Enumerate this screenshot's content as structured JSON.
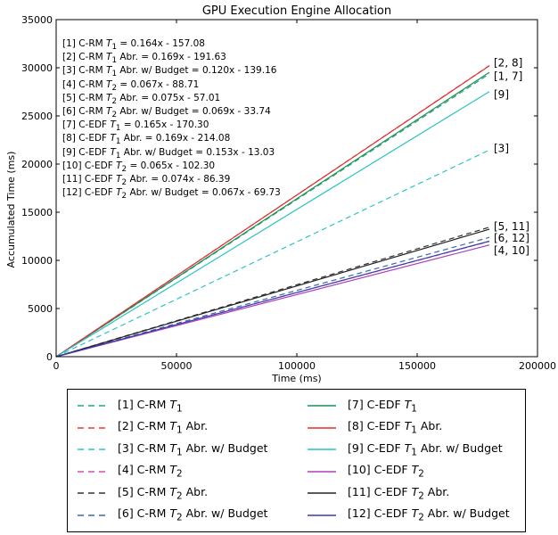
{
  "chart_data": {
    "type": "line",
    "title": "GPU Execution Engine Allocation",
    "xlabel": "Time (ms)",
    "ylabel": "Accumulated Time (ms)",
    "xlim": [
      0,
      200000
    ],
    "ylim": [
      0,
      35000
    ],
    "xticks": [
      "0",
      "50000",
      "100000",
      "150000",
      "200000"
    ],
    "yticks": [
      "0",
      "5000",
      "10000",
      "15000",
      "20000",
      "25000",
      "30000",
      "35000"
    ],
    "grid": false,
    "x_end": 180000,
    "series": [
      {
        "name": "[1] C-RM T1",
        "label_html": "[1] C-RM <i>T</i><sub>1</sub>",
        "slope": 0.164,
        "intercept": -157.08,
        "color": "#22a96e",
        "dash": true
      },
      {
        "name": "[2] C-RM T1 Abr.",
        "label_html": "[2] C-RM <i>T</i><sub>1</sub> Abr.",
        "slope": 0.169,
        "intercept": -191.63,
        "color": "#ee3a3a",
        "dash": true
      },
      {
        "name": "[3] C-RM T1 Abr. w/ Budget",
        "label_html": "[3] C-RM <i>T</i><sub>1</sub> Abr. w/ Budget",
        "slope": 0.12,
        "intercept": -139.16,
        "color": "#2ec4c4",
        "dash": true
      },
      {
        "name": "[4] C-RM T2",
        "label_html": "[4] C-RM <i>T</i><sub>2</sub>",
        "slope": 0.067,
        "intercept": -88.71,
        "color": "#d64fb0",
        "dash": true
      },
      {
        "name": "[5] C-RM T2 Abr.",
        "label_html": "[5] C-RM <i>T</i><sub>2</sub> Abr.",
        "slope": 0.075,
        "intercept": -57.01,
        "color": "#333333",
        "dash": true
      },
      {
        "name": "[6] C-RM T2 Abr. w/ Budget",
        "label_html": "[6] C-RM <i>T</i><sub>2</sub> Abr. w/ Budget",
        "slope": 0.069,
        "intercept": -33.74,
        "color": "#3a6aa6",
        "dash": true
      },
      {
        "name": "[7] C-EDF T1",
        "label_html": "[7] C-EDF <i>T</i><sub>1</sub>",
        "slope": 0.165,
        "intercept": -170.3,
        "color": "#1a8f5a",
        "dash": false
      },
      {
        "name": "[8] C-EDF T1 Abr.",
        "label_html": "[8] C-EDF <i>T</i><sub>1</sub> Abr.",
        "slope": 0.169,
        "intercept": -214.08,
        "color": "#e03030",
        "dash": false
      },
      {
        "name": "[9] C-EDF T1 Abr. w/ Budget",
        "label_html": "[9] C-EDF <i>T</i><sub>1</sub> Abr. w/ Budget",
        "slope": 0.153,
        "intercept": -13.03,
        "color": "#29c2c2",
        "dash": false
      },
      {
        "name": "[10] C-EDF T2",
        "label_html": "[10] C-EDF <i>T</i><sub>2</sub>",
        "slope": 0.065,
        "intercept": -102.3,
        "color": "#b040b8",
        "dash": false
      },
      {
        "name": "[11] C-EDF T2 Abr.",
        "label_html": "[11] C-EDF <i>T</i><sub>2</sub> Abr.",
        "slope": 0.074,
        "intercept": -86.39,
        "color": "#222222",
        "dash": false
      },
      {
        "name": "[12] C-EDF T2 Abr. w/ Budget",
        "label_html": "[12] C-EDF <i>T</i><sub>2</sub> Abr. w/ Budget",
        "slope": 0.067,
        "intercept": -69.73,
        "color": "#3a3ab0",
        "dash": false
      }
    ],
    "annotations": [
      {
        "text": "[1] C-RM T1 = 0.164x - 157.08",
        "html": "[1] C-RM <i>T</i><sub>1</sub> = 0.164x - 157.08"
      },
      {
        "text": "[2] C-RM T1 Abr. = 0.169x - 191.63",
        "html": "[2] C-RM <i>T</i><sub>1</sub> Abr. = 0.169x - 191.63"
      },
      {
        "text": "[3] C-RM T1 Abr. w/ Budget = 0.120x - 139.16",
        "html": "[3] C-RM <i>T</i><sub>1</sub> Abr. w/ Budget = 0.120x - 139.16"
      },
      {
        "text": "[4] C-RM T2 = 0.067x - 88.71",
        "html": "[4] C-RM <i>T</i><sub>2</sub> = 0.067x - 88.71"
      },
      {
        "text": "[5] C-RM T2 Abr. = 0.075x - 57.01",
        "html": "[5] C-RM <i>T</i><sub>2</sub> Abr. = 0.075x - 57.01"
      },
      {
        "text": "[6] C-RM T2 Abr. w/ Budget = 0.069x - 33.74",
        "html": "[6] C-RM <i>T</i><sub>2</sub> Abr. w/ Budget = 0.069x - 33.74"
      },
      {
        "text": "[7] C-EDF T1 = 0.165x - 170.30",
        "html": "[7] C-EDF <i>T</i><sub>1</sub> = 0.165x - 170.30"
      },
      {
        "text": "[8] C-EDF T1 Abr. = 0.169x - 214.08",
        "html": "[8] C-EDF <i>T</i><sub>1</sub> Abr. = 0.169x - 214.08"
      },
      {
        "text": "[9] C-EDF T1 Abr. w/ Budget = 0.153x - 13.03",
        "html": "[9] C-EDF <i>T</i><sub>1</sub> Abr. w/ Budget = 0.153x - 13.03"
      },
      {
        "text": "[10] C-EDF T2 = 0.065x - 102.30",
        "html": "[10] C-EDF <i>T</i><sub>2</sub> = 0.065x - 102.30"
      },
      {
        "text": "[11] C-EDF T2 Abr. = 0.074x - 86.39",
        "html": "[11] C-EDF <i>T</i><sub>2</sub> Abr. = 0.074x - 86.39"
      },
      {
        "text": "[12] C-EDF T2 Abr. w/ Budget = 0.067x - 69.73",
        "html": "[12] C-EDF <i>T</i><sub>2</sub> Abr. w/ Budget = 0.067x - 69.73"
      }
    ],
    "end_labels": [
      {
        "text": "[2, 8]",
        "y": 30500
      },
      {
        "text": "[1, 7]",
        "y": 29100
      },
      {
        "text": "[9]",
        "y": 27200
      },
      {
        "text": "[3]",
        "y": 21600
      },
      {
        "text": "[5, 11]",
        "y": 13500
      },
      {
        "text": "[6, 12]",
        "y": 12300
      },
      {
        "text": "[4, 10]",
        "y": 11000
      }
    ],
    "legend_placement": "below"
  }
}
